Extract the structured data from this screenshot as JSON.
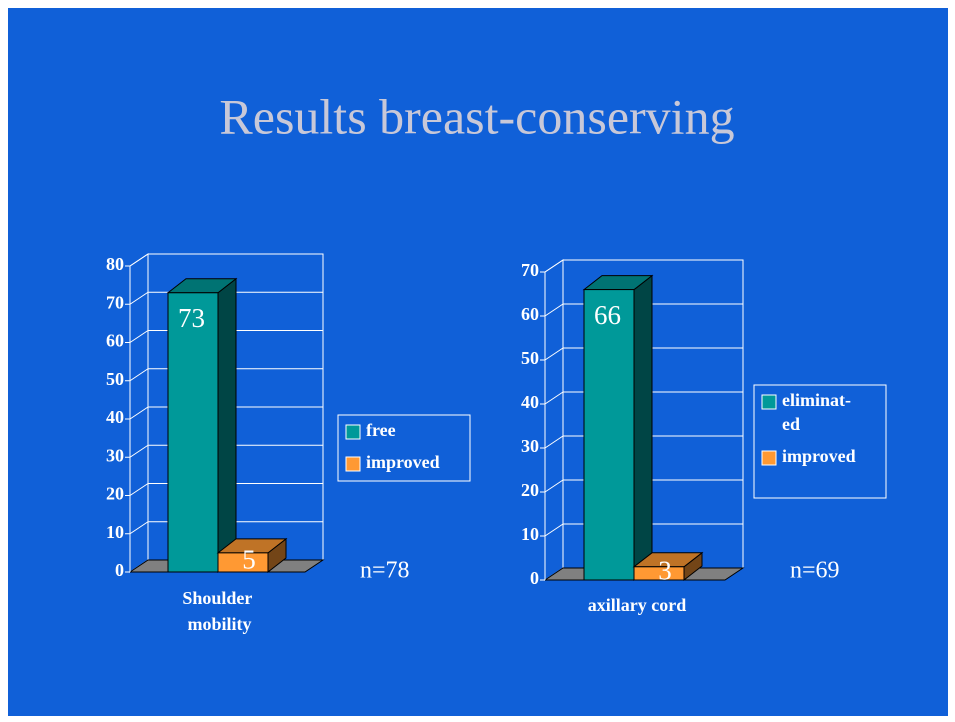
{
  "title": "Results breast-conserving",
  "chart_data": [
    {
      "type": "bar3d",
      "categories": [
        "Shoulder mobility"
      ],
      "series": [
        {
          "name": "free",
          "color": "#009999",
          "values": [
            73
          ]
        },
        {
          "name": "improved",
          "color": "#ff9933",
          "values": [
            5
          ]
        }
      ],
      "ylim": [
        0,
        80
      ],
      "yticks": [
        0,
        10,
        20,
        30,
        40,
        50,
        60,
        70,
        80
      ],
      "grid": true,
      "annotation": "n=78"
    },
    {
      "type": "bar3d",
      "categories": [
        "axillary cord"
      ],
      "series": [
        {
          "name": "eliminat-ed",
          "color": "#009999",
          "values": [
            66
          ]
        },
        {
          "name": "improved",
          "color": "#ff9933",
          "values": [
            3
          ]
        }
      ],
      "ylim": [
        0,
        70
      ],
      "yticks": [
        0,
        10,
        20,
        30,
        40,
        50,
        60,
        70
      ],
      "grid": true,
      "annotation": "n=69"
    }
  ]
}
